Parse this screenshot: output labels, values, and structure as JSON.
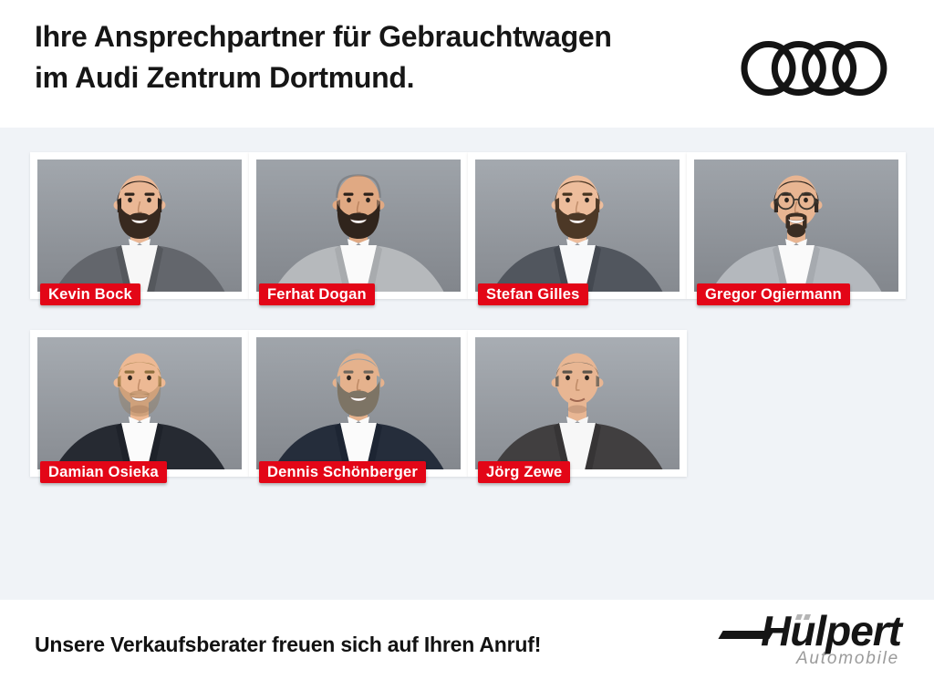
{
  "header": {
    "title_line1": "Ihre Ansprechpartner für Gebrauchtwagen",
    "title_line2": "im Audi Zentrum Dortmund."
  },
  "people": [
    {
      "name": "Kevin Bock",
      "row": 0,
      "col": 0,
      "appearance": {
        "hair": "short",
        "hair_color": "#2a211b",
        "beard": "full",
        "beard_color": "#38291f",
        "brow_color": "#2f241c",
        "glasses": false,
        "smile": "teeth",
        "suit_color": "#63666c",
        "lapel_color": "#55585d",
        "shirt_color": "#f7f7f7",
        "skin_color": "#eab795",
        "bg_top": "#a2a7ad",
        "bg_bottom": "#84888e"
      }
    },
    {
      "name": "Ferhat Dogan",
      "row": 0,
      "col": 1,
      "appearance": {
        "hair": "bald",
        "hair_color": "#2e2a28",
        "beard": "full",
        "beard_color": "#30241c",
        "brow_color": "#2b211a",
        "glasses": false,
        "smile": "teeth",
        "suit_color": "#b6b9bc",
        "lapel_color": "#a8abae",
        "shirt_color": "#fafafa",
        "skin_color": "#e0a983",
        "bg_top": "#9ea3a9",
        "bg_bottom": "#82868c"
      }
    },
    {
      "name": "Stefan Gilles",
      "row": 0,
      "col": 2,
      "appearance": {
        "hair": "short",
        "hair_color": "#503b28",
        "beard": "full",
        "beard_color": "#4c3826",
        "brow_color": "#45331f",
        "glasses": false,
        "smile": "teeth",
        "suit_color": "#51565e",
        "lapel_color": "#444951",
        "shirt_color": "#f8f9fa",
        "skin_color": "#edbd9c",
        "bg_top": "#a4a9af",
        "bg_bottom": "#868a90"
      }
    },
    {
      "name": "Gregor Ogiermann",
      "row": 0,
      "col": 3,
      "appearance": {
        "hair": "short",
        "hair_color": "#332a23",
        "beard": "goatee",
        "beard_color": "#3a2d23",
        "brow_color": "#322820",
        "glasses": true,
        "smile": "teeth",
        "suit_color": "#b4b8bd",
        "lapel_color": "#a6aaaf",
        "shirt_color": "#fafafa",
        "skin_color": "#e8b592",
        "bg_top": "#9fa4aa",
        "bg_bottom": "#83878d"
      }
    },
    {
      "name": "Damian Osieka",
      "row": 1,
      "col": 0,
      "appearance": {
        "hair": "receding",
        "hair_color": "#a8854f",
        "beard": "stubble",
        "beard_color": "#8a6b42",
        "brow_color": "#8f703f",
        "glasses": false,
        "smile": "teeth",
        "suit_color": "#262a32",
        "lapel_color": "#1e222a",
        "shirt_color": "#fbfbfb",
        "skin_color": "#edb994",
        "bg_top": "#a6abb1",
        "bg_bottom": "#888c92"
      }
    },
    {
      "name": "Dennis Schönberger",
      "row": 1,
      "col": 1,
      "appearance": {
        "hair": "quiff",
        "hair_color": "#9aa0a3",
        "beard": "full",
        "beard_color": "#7d7465",
        "brow_color": "#6e675c",
        "glasses": false,
        "smile": "teeth",
        "suit_color": "#252d3b",
        "lapel_color": "#1d2533",
        "shirt_color": "#fbfbfb",
        "skin_color": "#e5b28d",
        "bg_top": "#a0a5ab",
        "bg_bottom": "#84888e"
      }
    },
    {
      "name": "Jörg Zewe",
      "row": 1,
      "col": 2,
      "appearance": {
        "hair": "receding",
        "hair_color": "#70675c",
        "beard": "none",
        "beard_color": "#70675c",
        "brow_color": "#5d554b",
        "glasses": false,
        "smile": "closed",
        "suit_color": "#413f40",
        "lapel_color": "#363435",
        "shirt_color": "#f7f7f7",
        "skin_color": "#e8b693",
        "bg_top": "#a8adb3",
        "bg_bottom": "#8a8e94"
      }
    }
  ],
  "footer": {
    "message": "Unsere Verkaufsberater freuen sich auf Ihren Anruf!",
    "brand": "Hülpert",
    "brand_tagline": "Automobile"
  },
  "colors": {
    "badge_bg": "#e30617",
    "badge_text": "#ffffff",
    "band_bg": "#f0f3f7",
    "headline_text": "#161616",
    "audi_rings": "#141414",
    "brand_text": "#151515",
    "tagline_text": "#9b9b9b"
  }
}
